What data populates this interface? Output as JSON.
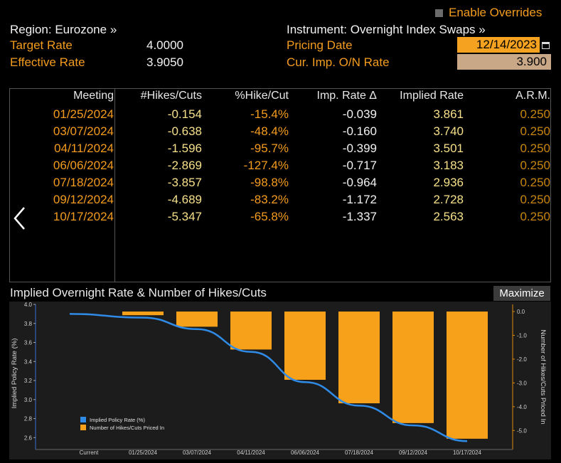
{
  "header": {
    "enable_overrides_label": "Enable Overrides",
    "region_label": "Region: Eurozone »",
    "target_rate_label": "Target Rate",
    "target_rate_value": "4.0000",
    "effective_rate_label": "Effective Rate",
    "effective_rate_value": "3.9050",
    "instrument_label": "Instrument: Overnight Index Swaps »",
    "pricing_date_label": "Pricing Date",
    "pricing_date_value": "12/14/2023",
    "cur_imp_label": "Cur. Imp. O/N Rate",
    "cur_imp_value": "3.900"
  },
  "table": {
    "columns": [
      "Meeting",
      "#Hikes/Cuts",
      "%Hike/Cut",
      "Imp. Rate Δ",
      "Implied Rate",
      "A.R.M."
    ],
    "rows": [
      {
        "meeting": "01/25/2024",
        "hikes": "-0.154",
        "pct": "-15.4%",
        "delta": "-0.039",
        "implied": "3.861",
        "arm": "0.250"
      },
      {
        "meeting": "03/07/2024",
        "hikes": "-0.638",
        "pct": "-48.4%",
        "delta": "-0.160",
        "implied": "3.740",
        "arm": "0.250"
      },
      {
        "meeting": "04/11/2024",
        "hikes": "-1.596",
        "pct": "-95.7%",
        "delta": "-0.399",
        "implied": "3.501",
        "arm": "0.250"
      },
      {
        "meeting": "06/06/2024",
        "hikes": "-2.869",
        "pct": "-127.4%",
        "delta": "-0.717",
        "implied": "3.183",
        "arm": "0.250"
      },
      {
        "meeting": "07/18/2024",
        "hikes": "-3.857",
        "pct": "-98.8%",
        "delta": "-0.964",
        "implied": "2.936",
        "arm": "0.250"
      },
      {
        "meeting": "09/12/2024",
        "hikes": "-4.689",
        "pct": "-83.2%",
        "delta": "-1.172",
        "implied": "2.728",
        "arm": "0.250"
      },
      {
        "meeting": "10/17/2024",
        "hikes": "-5.347",
        "pct": "-65.8%",
        "delta": "-1.337",
        "implied": "2.563",
        "arm": "0.250"
      }
    ]
  },
  "chart_panel": {
    "title": "Implied Overnight Rate & Number of Hikes/Cuts",
    "maximize_label": "Maximize"
  },
  "colors": {
    "orange": "#f39c1f",
    "yellow": "#f6e08a",
    "bar": "#f7a11a",
    "line": "#2f8be6"
  },
  "chart_data": {
    "type": "bar",
    "categories": [
      "Current",
      "01/25/2024",
      "03/07/2024",
      "04/11/2024",
      "06/06/2024",
      "07/18/2024",
      "09/12/2024",
      "10/17/2024"
    ],
    "series": [
      {
        "name": "Implied Policy Rate (%)",
        "type": "line",
        "axis": "left",
        "values": [
          3.9,
          3.861,
          3.74,
          3.501,
          3.183,
          2.936,
          2.728,
          2.563
        ]
      },
      {
        "name": "Number of Hikes/Cuts Priced In",
        "type": "bar",
        "axis": "right",
        "values": [
          null,
          -0.154,
          -0.638,
          -1.596,
          -2.869,
          -3.857,
          -4.689,
          -5.347
        ]
      }
    ],
    "ylabel": "Implied Policy Rate (%)",
    "y2label": "Number of Hikes/Cuts Priced In",
    "ylim": [
      2.55,
      4.0
    ],
    "y2lim": [
      -5.5,
      0.3
    ],
    "yticks": [
      "2.6",
      "2.8",
      "3.0",
      "3.2",
      "3.4",
      "3.6",
      "3.8",
      "4.0"
    ],
    "y2ticks": [
      "0.0",
      "-1.0",
      "-2.0",
      "-3.0",
      "-4.0",
      "-5.0"
    ],
    "legend": [
      "Implied Policy Rate (%)",
      "Number of Hikes/Cuts Priced In"
    ],
    "legend_position": "bottom-left"
  }
}
